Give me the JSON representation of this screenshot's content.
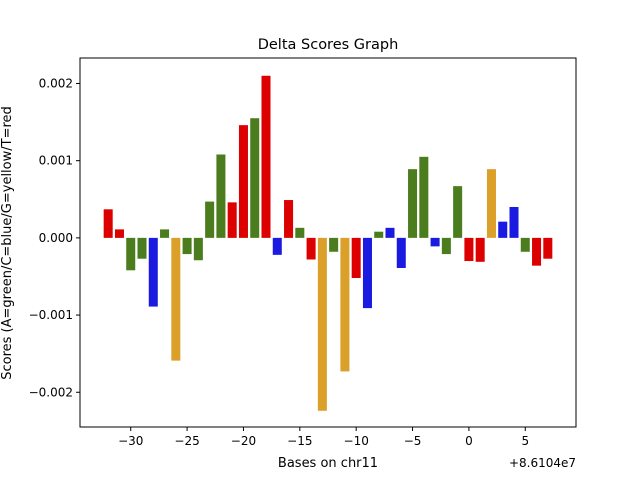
{
  "chart_data": {
    "type": "bar",
    "title": "Delta Scores Graph",
    "xlabel": "Bases on chr11",
    "ylabel": "Scores (A=green/C=blue/G=yellow/T=red",
    "x_offset_label": "+8.6104e7",
    "xlim": [
      -34.5,
      9.5
    ],
    "ylim": [
      -0.00245,
      0.00233
    ],
    "x_ticks": [
      -30,
      -25,
      -20,
      -15,
      -10,
      -5,
      0,
      5
    ],
    "x_tick_labels": [
      "−30",
      "−25",
      "−20",
      "−15",
      "−10",
      "−5",
      "0",
      "5"
    ],
    "y_ticks": [
      -0.002,
      -0.001,
      0.0,
      0.001,
      0.002
    ],
    "y_tick_labels": [
      "−0.002",
      "−0.001",
      "0.000",
      "0.001",
      "0.002"
    ],
    "grid": false,
    "legend": "none",
    "base_colors": {
      "A": "#4b7d1f",
      "C": "#1a1ae0",
      "G": "#daa02a",
      "T": "#dc0000"
    },
    "x": [
      -32,
      -31,
      -30,
      -29,
      -28,
      -27,
      -26,
      -25,
      -24,
      -23,
      -22,
      -21,
      -20,
      -19,
      -18,
      -17,
      -16,
      -15,
      -14,
      -13,
      -12,
      -11,
      -10,
      -9,
      -8,
      -7,
      -6,
      -5,
      -4,
      -3,
      -2,
      -1,
      0,
      1,
      2,
      3,
      4,
      5,
      6,
      7
    ],
    "values": [
      0.00037,
      0.00011,
      -0.00042,
      -0.00027,
      -0.00089,
      0.00011,
      -0.00159,
      -0.00021,
      -0.00029,
      0.00047,
      0.00108,
      0.00046,
      0.00146,
      0.00155,
      0.0021,
      -0.00022,
      0.00049,
      0.00013,
      -0.00028,
      -0.00224,
      -0.00018,
      -0.00173,
      -0.00052,
      -0.00091,
      8e-05,
      0.00013,
      -0.00039,
      0.00089,
      0.00105,
      -0.00011,
      -0.00021,
      0.00067,
      -0.0003,
      -0.00031,
      0.00089,
      0.00021,
      0.0004,
      -0.00018,
      -0.00036,
      -0.00027
    ],
    "bases": [
      "T",
      "T",
      "A",
      "A",
      "C",
      "A",
      "G",
      "A",
      "A",
      "A",
      "A",
      "T",
      "T",
      "A",
      "T",
      "C",
      "T",
      "A",
      "T",
      "G",
      "A",
      "G",
      "T",
      "C",
      "A",
      "C",
      "C",
      "A",
      "A",
      "C",
      "A",
      "A",
      "T",
      "T",
      "G",
      "C",
      "C",
      "A",
      "T",
      "T"
    ]
  }
}
